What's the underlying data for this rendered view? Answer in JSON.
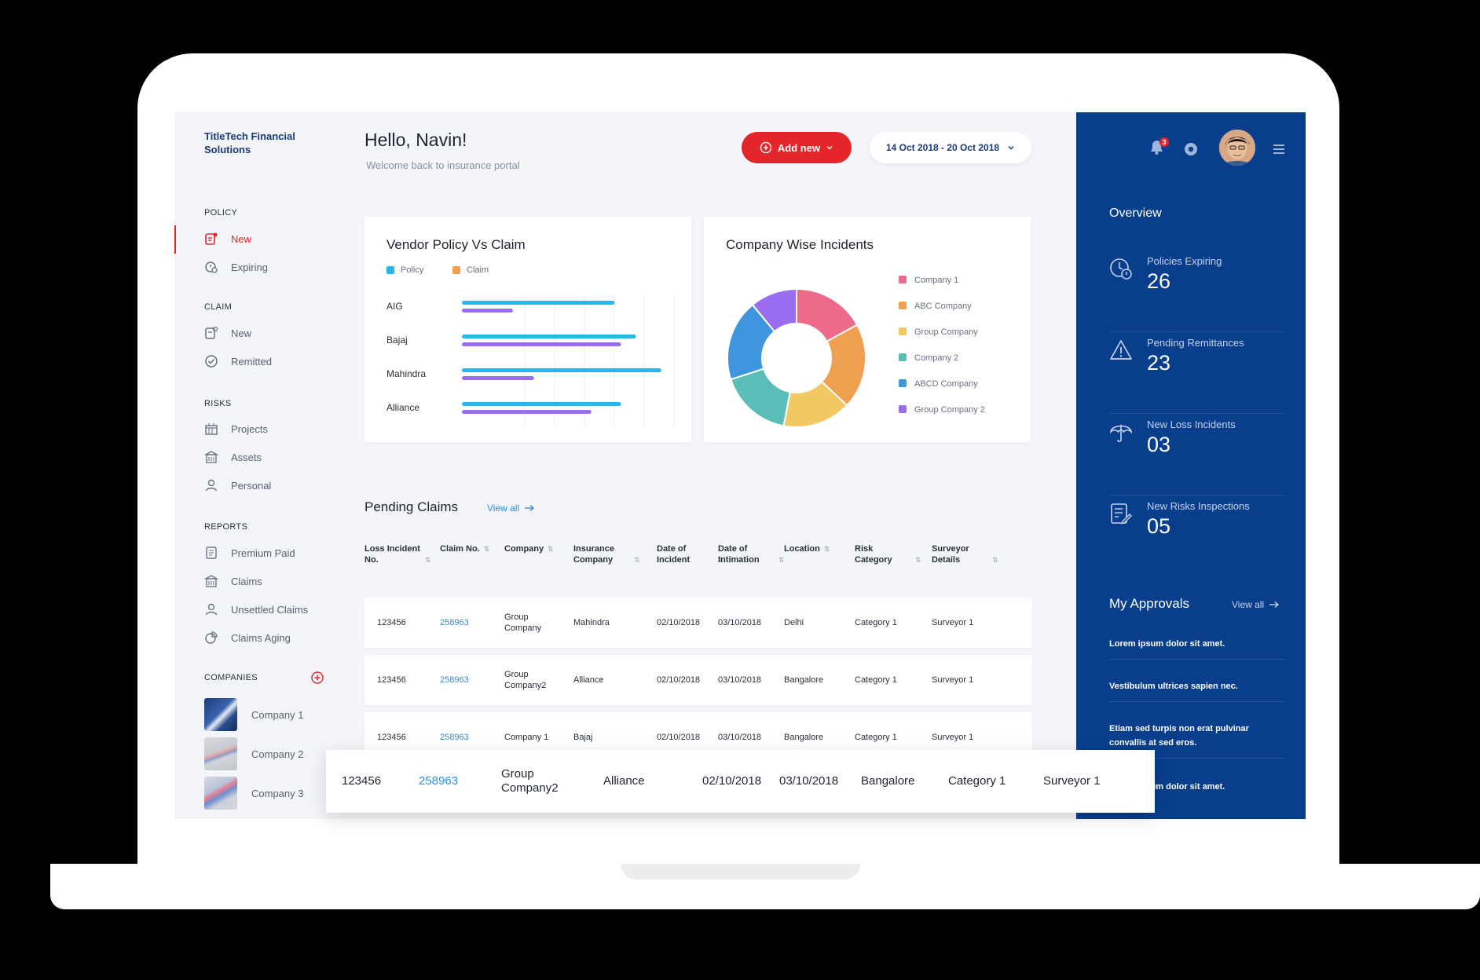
{
  "brand": "TitleTech Financial Solutions",
  "header": {
    "greeting": "Hello, Navin!",
    "welcome": "Welcome back to insurance portal",
    "add_new_label": "Add new",
    "date_range": "14 Oct 2018 - 20 Oct 2018"
  },
  "sidebar": {
    "sections": [
      {
        "title": "POLICY",
        "items": [
          {
            "label": "New",
            "icon": "policy-new-icon",
            "active": true
          },
          {
            "label": "Expiring",
            "icon": "policy-expiring-icon"
          }
        ]
      },
      {
        "title": "CLAIM",
        "items": [
          {
            "label": "New",
            "icon": "claim-new-icon"
          },
          {
            "label": "Remitted",
            "icon": "remitted-icon"
          }
        ]
      },
      {
        "title": "RISKS",
        "items": [
          {
            "label": "Projects",
            "icon": "projects-icon"
          },
          {
            "label": "Assets",
            "icon": "assets-icon"
          },
          {
            "label": "Personal",
            "icon": "personal-icon"
          }
        ]
      },
      {
        "title": "REPORTS",
        "items": [
          {
            "label": "Premium Paid",
            "icon": "premium-paid-icon"
          },
          {
            "label": "Claims",
            "icon": "claims-icon"
          },
          {
            "label": "Unsettled Claims",
            "icon": "unsettled-claims-icon"
          },
          {
            "label": "Claims Aging",
            "icon": "claims-aging-icon"
          }
        ]
      }
    ],
    "companies_title": "COMPANIES",
    "companies": [
      "Company 1",
      "Company 2",
      "Company 3"
    ]
  },
  "vendor_chart": {
    "title": "Vendor Policy Vs Claim",
    "legend": [
      "Policy",
      "Claim"
    ],
    "colors": {
      "policy": "#2bb5ec",
      "claim": "#9a6cf0"
    }
  },
  "incidents_chart": {
    "title": "Company Wise Incidents"
  },
  "chart_data": [
    {
      "type": "bar",
      "orientation": "horizontal",
      "title": "Vendor Policy Vs Claim",
      "categories": [
        "AIG",
        "Bajaj",
        "Mahindra",
        "Alliance"
      ],
      "series": [
        {
          "name": "Policy",
          "values": [
            72,
            82,
            94,
            75
          ],
          "color": "#2bb5ec"
        },
        {
          "name": "Claim",
          "values": [
            24,
            75,
            34,
            61
          ],
          "color": "#9a6cf0"
        }
      ],
      "xlim": [
        0,
        100
      ],
      "grid": true
    },
    {
      "type": "pie",
      "donut": true,
      "title": "Company Wise Incidents",
      "labels": [
        "Company 1",
        "ABC Company",
        "Group Company",
        "Company 2",
        "ABCD Company",
        "Group Company 2"
      ],
      "values": [
        17,
        20,
        16,
        17,
        19,
        11
      ],
      "colors": [
        "#ee6a8a",
        "#efa050",
        "#f2c862",
        "#5bbdb8",
        "#3f95de",
        "#9a6cf0"
      ],
      "legend": "right"
    }
  ],
  "pending_claims": {
    "title": "Pending Claims",
    "view_all": "View all",
    "headers": [
      "Loss Incident No.",
      "Claim No.",
      "Company",
      "Insurance Company",
      "Date of Incident",
      "Date of Intimation",
      "Location",
      "Risk Category",
      "Surveyor Details"
    ],
    "rows": [
      [
        "123456",
        "258963",
        "Group Company",
        "Mahindra",
        "02/10/2018",
        "03/10/2018",
        "Delhi",
        "Category 1",
        "Surveyor 1"
      ],
      [
        "123456",
        "258963",
        "Group Company2",
        "Alliance",
        "02/10/2018",
        "03/10/2018",
        "Bangalore",
        "Category 1",
        "Surveyor 1"
      ],
      [
        "123456",
        "258963",
        "Company 1",
        "Bajaj",
        "02/10/2018",
        "03/10/2018",
        "Bangalore",
        "Category 1",
        "Surveyor 1"
      ]
    ],
    "highlighted_row": [
      "123456",
      "258963",
      "Group Company2",
      "Alliance",
      "02/10/2018",
      "03/10/2018",
      "Bangalore",
      "Category 1",
      "Surveyor 1"
    ]
  },
  "overview": {
    "title": "Overview",
    "notification_count": "3",
    "stats": [
      {
        "label": "Policies Expiring",
        "value": "26",
        "icon": "clock-alert-icon"
      },
      {
        "label": "Pending Remittances",
        "value": "23",
        "icon": "warning-icon"
      },
      {
        "label": "New Loss Incidents",
        "value": "03",
        "icon": "umbrella-icon"
      },
      {
        "label": "New Risks Inspections",
        "value": "05",
        "icon": "inspection-icon"
      }
    ]
  },
  "approvals": {
    "title": "My Approvals",
    "view_all": "View all",
    "items": [
      "Lorem ipsum dolor sit amet.",
      "Vestibulum ultrices sapien nec.",
      "Etiam sed turpis non erat pulvinar convallis at sed eros.",
      "Lorem ipsum dolor sit amet."
    ]
  },
  "colors": {
    "accent_red": "#e4262a",
    "panel_blue": "#083e8c",
    "link_blue": "#2a8fe6"
  }
}
